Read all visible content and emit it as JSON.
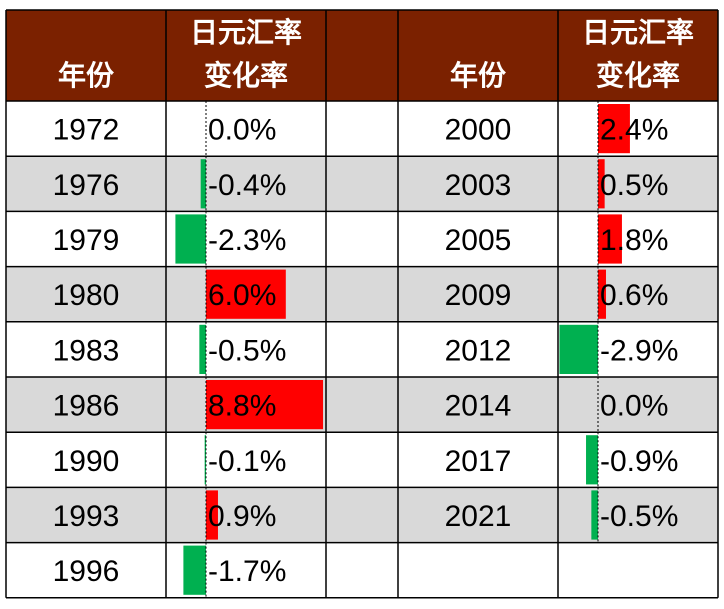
{
  "table": {
    "header_color": "#7B2100",
    "header_text_color": "#FFFFFF",
    "stripe_color": "#D9D9D9",
    "left": {
      "year_header": "年份",
      "rate_header_line1": "日元汇率",
      "rate_header_line2": "变化率"
    },
    "right": {
      "year_header": "年份",
      "rate_header_line1": "日元汇率",
      "rate_header_line2": "变化率"
    }
  },
  "chart_data": {
    "type": "table",
    "positive_color": "#FF0000",
    "negative_color": "#00B050",
    "columns": [
      "年份",
      "日元汇率变化率"
    ],
    "left_rows": [
      {
        "year": "1972",
        "label": "0.0%",
        "value": 0.0
      },
      {
        "year": "1976",
        "label": "-0.4%",
        "value": -0.4
      },
      {
        "year": "1979",
        "label": "-2.3%",
        "value": -2.3
      },
      {
        "year": "1980",
        "label": "6.0%",
        "value": 6.0
      },
      {
        "year": "1983",
        "label": "-0.5%",
        "value": -0.5
      },
      {
        "year": "1986",
        "label": "8.8%",
        "value": 8.8
      },
      {
        "year": "1990",
        "label": "-0.1%",
        "value": -0.1
      },
      {
        "year": "1993",
        "label": "0.9%",
        "value": 0.9
      },
      {
        "year": "1996",
        "label": "-1.7%",
        "value": -1.7
      }
    ],
    "right_rows": [
      {
        "year": "2000",
        "label": "2.4%",
        "value": 2.4
      },
      {
        "year": "2003",
        "label": "0.5%",
        "value": 0.5
      },
      {
        "year": "2005",
        "label": "1.8%",
        "value": 1.8
      },
      {
        "year": "2009",
        "label": "0.6%",
        "value": 0.6
      },
      {
        "year": "2012",
        "label": "-2.9%",
        "value": -2.9
      },
      {
        "year": "2014",
        "label": "0.0%",
        "value": 0.0
      },
      {
        "year": "2017",
        "label": "-0.9%",
        "value": -0.9
      },
      {
        "year": "2021",
        "label": "-0.5%",
        "value": -0.5
      }
    ]
  }
}
